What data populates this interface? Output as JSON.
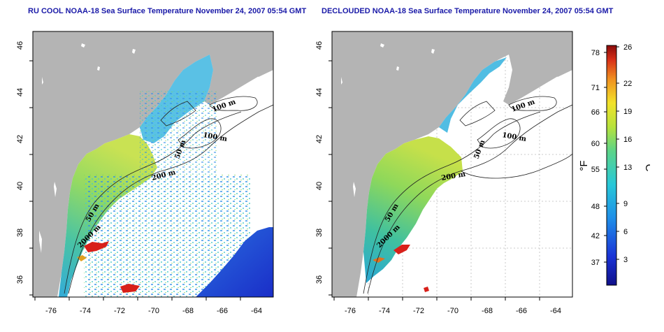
{
  "left_panel": {
    "title": "RU COOL NOAA-18 Sea Surface Temperature November 24, 2007 05:54 GMT"
  },
  "right_panel": {
    "title": "DECLOUDED NOAA-18 Sea Surface Temperature November 24, 2007 05:54 GMT"
  },
  "axes": {
    "x_ticks": [
      "-76",
      "-74",
      "-72",
      "-70",
      "-68",
      "-66",
      "-64"
    ],
    "y_ticks": [
      "36",
      "38",
      "40",
      "42",
      "44",
      "46"
    ]
  },
  "depth_labels": {
    "d100a": "100 m",
    "d100b": "100 m",
    "d50a": "50 m",
    "d200": "200 m",
    "d50b": "50 m",
    "d2000": "2000 m"
  },
  "colorbar": {
    "fahrenheit_ticks": [
      "78",
      "71",
      "66",
      "60",
      "55",
      "48",
      "42",
      "37"
    ],
    "celsius_ticks": [
      "26",
      "22",
      "19",
      "16",
      "13",
      "9",
      "6",
      "3"
    ],
    "fahrenheit_unit": "°F",
    "celsius_unit": "°C"
  },
  "colors": {
    "land": "#b4b4b4",
    "title": "#1a1aa8",
    "grid": "#bbbbbb"
  }
}
